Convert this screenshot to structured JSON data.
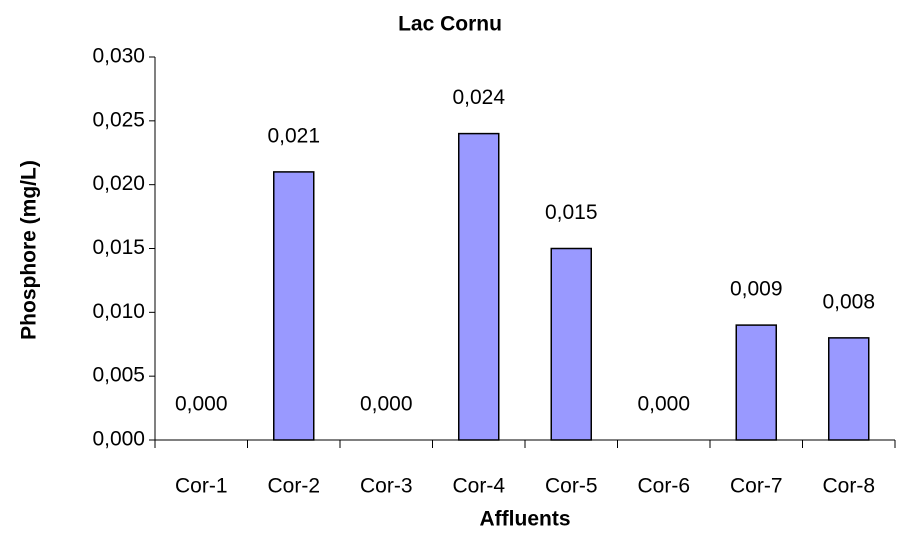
{
  "chart_data": {
    "type": "bar",
    "title": "Lac Cornu",
    "x_label": "Affluents",
    "y_label": "Phosphore (mg/L)",
    "categories": [
      "Cor-1",
      "Cor-2",
      "Cor-3",
      "Cor-4",
      "Cor-5",
      "Cor-6",
      "Cor-7",
      "Cor-8"
    ],
    "values": [
      0,
      0.021,
      0,
      0.024,
      0.015,
      0,
      0.009,
      0.008
    ],
    "value_labels": [
      "0,000",
      "0,021",
      "0,000",
      "0,024",
      "0,015",
      "0,000",
      "0,009",
      "0,008"
    ],
    "color": "#9999ff",
    "ylim": [
      0,
      0.03
    ],
    "yticks": [
      {
        "value": 0,
        "label": "0,000"
      },
      {
        "value": 0.005,
        "label": "0,005"
      },
      {
        "value": 0.01,
        "label": "0,010"
      },
      {
        "value": 0.015,
        "label": "0,015"
      },
      {
        "value": 0.02,
        "label": "0,020"
      },
      {
        "value": 0.025,
        "label": "0,025"
      },
      {
        "value": 0.03,
        "label": "0,030"
      }
    ],
    "grid": false
  }
}
